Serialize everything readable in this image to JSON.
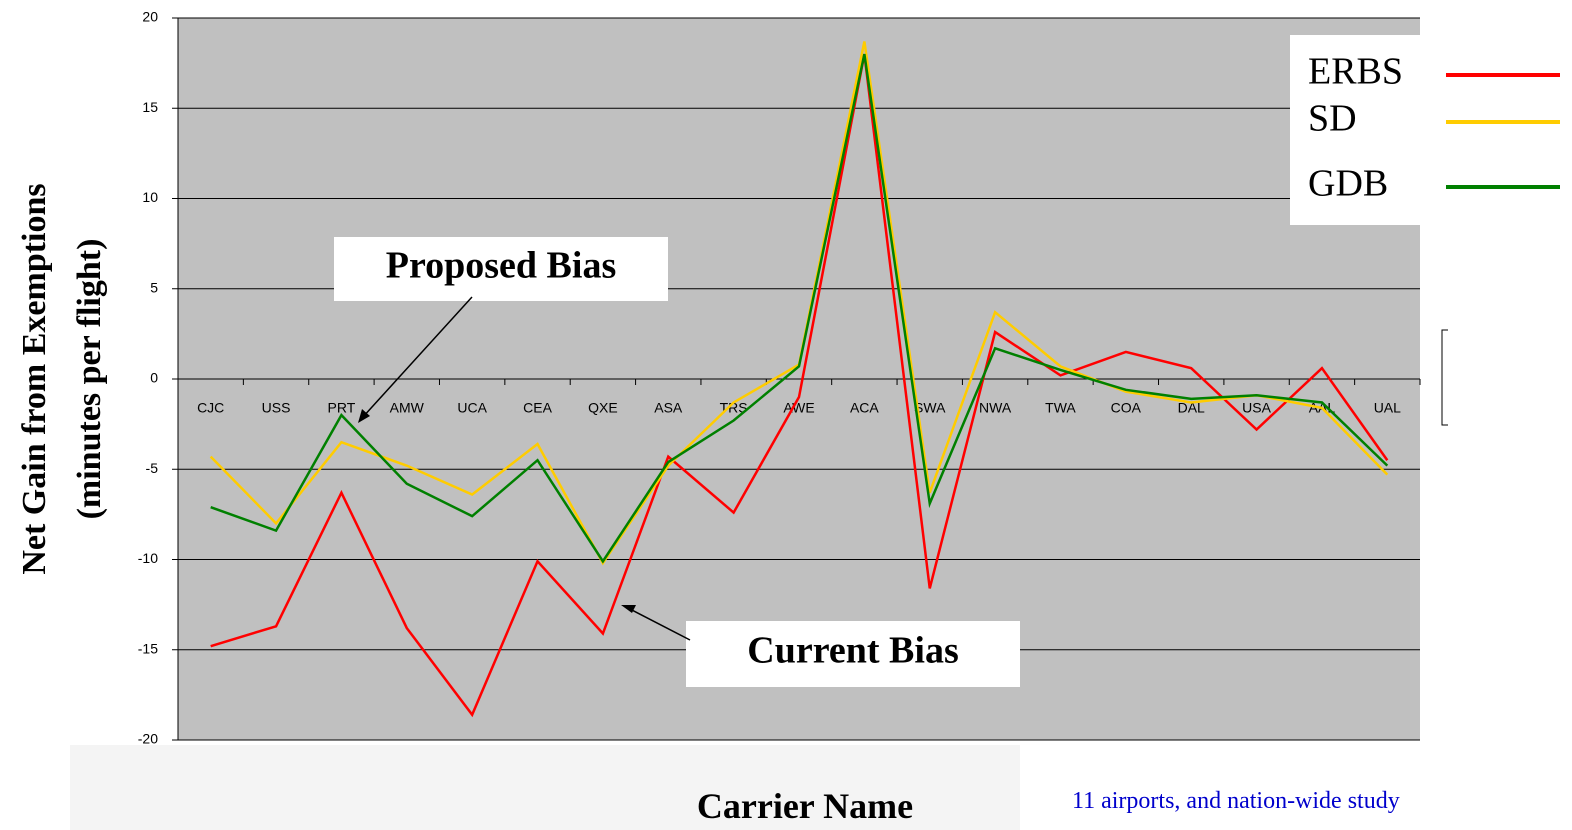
{
  "chart_data": {
    "type": "line",
    "y_label": [
      "Net Gain from Exemptions",
      "(minutes per flight)"
    ],
    "x_label": "Carrier Name",
    "categories": [
      "CJC",
      "USS",
      "PRT",
      "AMW",
      "UCA",
      "CEA",
      "QXE",
      "ASA",
      "TRS",
      "AWE",
      "ACA",
      "SWA",
      "NWA",
      "TWA",
      "COA",
      "DAL",
      "USA",
      "AAL",
      "UAL"
    ],
    "series": [
      {
        "name": "ERBS",
        "color": "#ff0000",
        "values": [
          -14.8,
          -13.7,
          -6.3,
          -13.8,
          -18.6,
          -10.1,
          -14.1,
          -4.3,
          -7.4,
          -1.0,
          18.0,
          -11.6,
          2.6,
          0.2,
          1.5,
          0.6,
          -2.8,
          0.6,
          -4.5
        ]
      },
      {
        "name": "SD",
        "color": "#ffcc00",
        "values": [
          -4.3,
          -8.0,
          -3.5,
          -4.8,
          -6.4,
          -3.6,
          -10.2,
          -4.8,
          -1.3,
          0.8,
          18.7,
          -6.3,
          3.7,
          0.7,
          -0.7,
          -1.3,
          -0.9,
          -1.6,
          -5.3
        ]
      },
      {
        "name": "GDB",
        "color": "#008000",
        "values": [
          -7.1,
          -8.4,
          -2.0,
          -5.8,
          -7.6,
          -4.5,
          -10.1,
          -4.6,
          -2.3,
          0.7,
          18.0,
          -6.9,
          1.7,
          0.5,
          -0.6,
          -1.1,
          -0.9,
          -1.3,
          -4.8
        ]
      }
    ],
    "ylim": [
      -20,
      20
    ],
    "yticks": [
      -20,
      -15,
      -10,
      -5,
      0,
      5,
      10,
      15,
      20
    ],
    "grid": true,
    "annotations": [
      "Proposed Bias",
      "Current Bias",
      "11 airports, and nation-wide study"
    ]
  }
}
